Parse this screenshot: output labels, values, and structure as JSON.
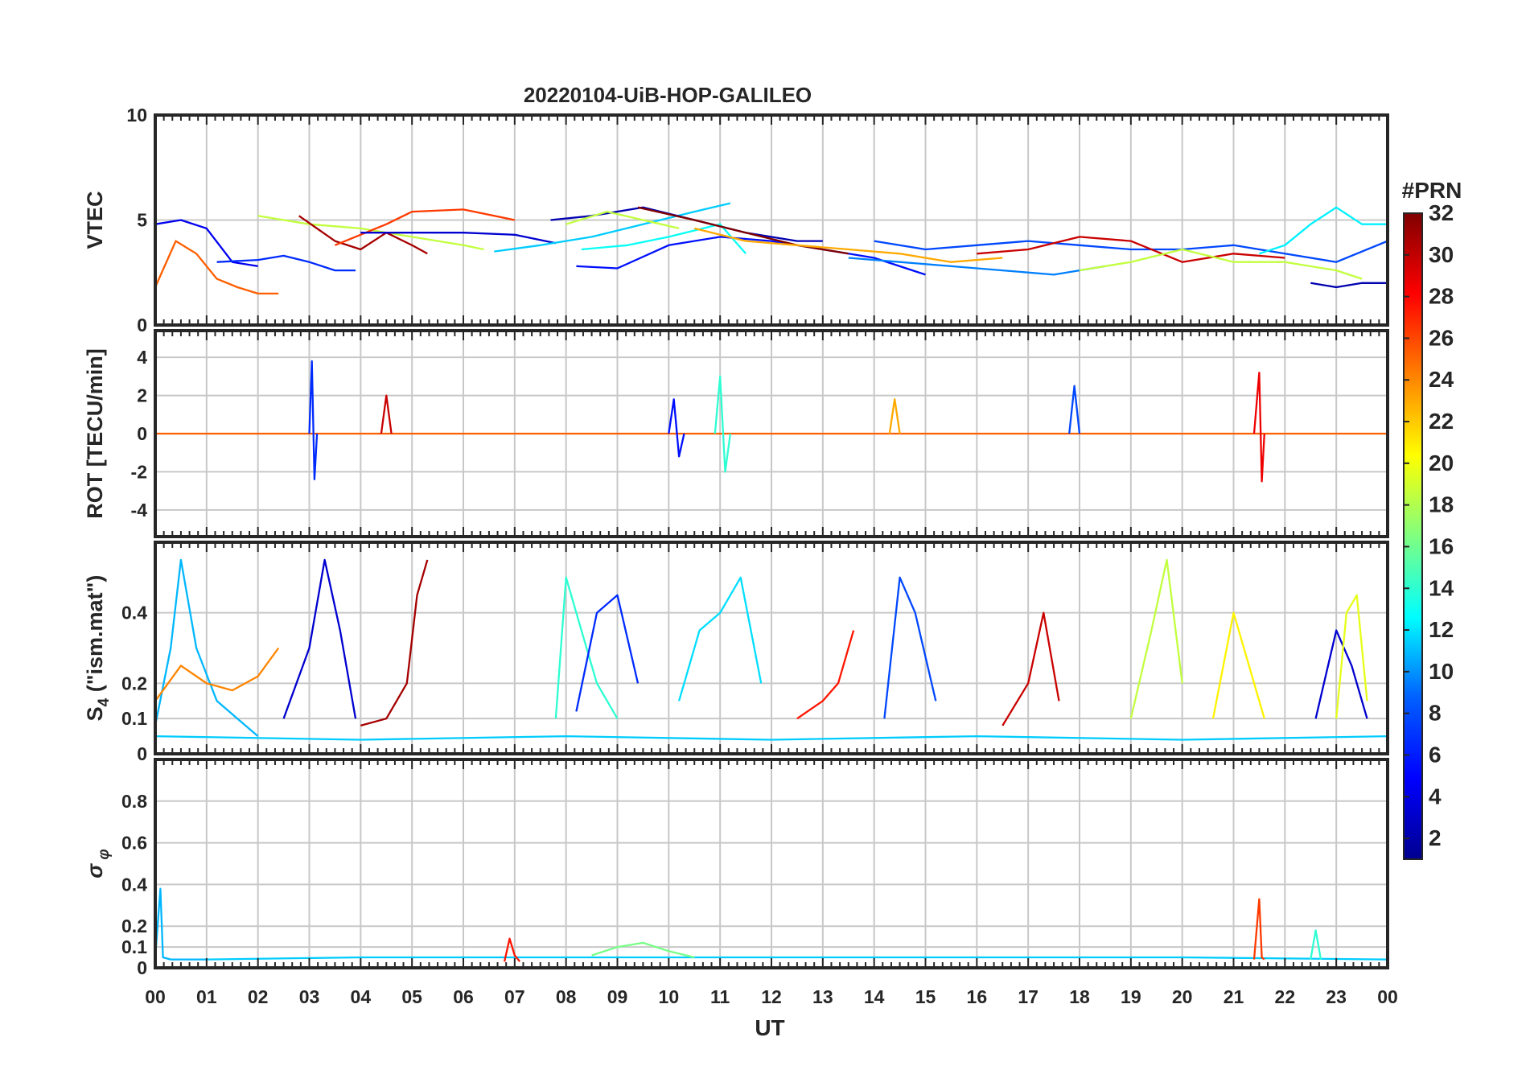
{
  "title": "20220104-UiB-HOP-GALILEO",
  "x_axis": {
    "label": "UT",
    "tick_labels": [
      "00",
      "01",
      "02",
      "03",
      "04",
      "05",
      "06",
      "07",
      "08",
      "09",
      "10",
      "11",
      "12",
      "13",
      "14",
      "15",
      "16",
      "17",
      "18",
      "19",
      "20",
      "21",
      "22",
      "23",
      "00"
    ]
  },
  "colorbar": {
    "label": "#PRN",
    "range": [
      1,
      32
    ],
    "tick_labels": [
      "2",
      "4",
      "6",
      "8",
      "10",
      "12",
      "14",
      "16",
      "18",
      "20",
      "22",
      "24",
      "26",
      "28",
      "30",
      "32"
    ],
    "colormap": "jet",
    "colors": [
      "#00008f",
      "#0000ff",
      "#0080ff",
      "#00ffff",
      "#80ff80",
      "#ffff00",
      "#ff8000",
      "#ff0000",
      "#800000"
    ]
  },
  "chart_data": [
    {
      "panel": "VTEC",
      "type": "line",
      "ylabel": "VTEC",
      "ylim": [
        0,
        10
      ],
      "yticks": [
        0,
        5,
        10
      ],
      "ytick_labels": [
        "0",
        "5",
        "10"
      ],
      "xlim_hours": [
        0,
        24
      ],
      "grid": true,
      "series": [
        {
          "prn": 4,
          "x": [
            0,
            0.5,
            1,
            1.5,
            2
          ],
          "y": [
            4.8,
            5.0,
            4.6,
            3.0,
            2.8
          ]
        },
        {
          "prn": 26,
          "x": [
            0,
            0.4,
            0.8,
            1.2,
            1.6,
            2.0,
            2.4
          ],
          "y": [
            1.8,
            4.0,
            3.4,
            2.2,
            1.8,
            1.5,
            1.5
          ]
        },
        {
          "prn": 6,
          "x": [
            1.2,
            2,
            2.5,
            3,
            3.5,
            3.9
          ],
          "y": [
            3.0,
            3.1,
            3.3,
            3.0,
            2.6,
            2.6
          ]
        },
        {
          "prn": 20,
          "x": [
            2,
            3,
            4,
            5,
            6,
            6.4
          ],
          "y": [
            5.2,
            4.8,
            4.6,
            4.2,
            3.8,
            3.6
          ]
        },
        {
          "prn": 31,
          "x": [
            2.8,
            3.5,
            4,
            4.5,
            5,
            5.3
          ],
          "y": [
            5.2,
            4.0,
            3.6,
            4.4,
            3.8,
            3.4
          ]
        },
        {
          "prn": 27,
          "x": [
            3.5,
            4.5,
            5,
            6,
            7
          ],
          "y": [
            3.8,
            4.8,
            5.4,
            5.5,
            5.0
          ]
        },
        {
          "prn": 3,
          "x": [
            4,
            5,
            6,
            7,
            7.8
          ],
          "y": [
            4.4,
            4.4,
            4.4,
            4.3,
            3.9
          ]
        },
        {
          "prn": 12,
          "x": [
            6.6,
            7.5,
            8.5,
            9.5,
            10.5,
            11.2
          ],
          "y": [
            3.5,
            3.8,
            4.2,
            4.8,
            5.4,
            5.8
          ]
        },
        {
          "prn": 2,
          "x": [
            7.7,
            8.5,
            9.5,
            10.5,
            11.5,
            12.5,
            13
          ],
          "y": [
            5.0,
            5.2,
            5.6,
            5.0,
            4.4,
            4.0,
            4.0
          ]
        },
        {
          "prn": 5,
          "x": [
            8.2,
            9,
            10,
            11,
            12,
            13,
            14,
            15
          ],
          "y": [
            2.8,
            2.7,
            3.8,
            4.2,
            4.0,
            3.6,
            3.2,
            2.4
          ]
        },
        {
          "prn": 15,
          "x": [
            8.3,
            9.2,
            10,
            11,
            11.5
          ],
          "y": [
            3.6,
            3.8,
            4.2,
            4.8,
            3.4
          ]
        },
        {
          "prn": 20,
          "x": [
            8,
            8.8,
            9.5,
            10.2
          ],
          "y": [
            4.8,
            5.4,
            5.0,
            4.6
          ]
        },
        {
          "prn": 32,
          "x": [
            9.4,
            10.5,
            11.5,
            12.5,
            13.5
          ],
          "y": [
            5.6,
            5.0,
            4.4,
            3.8,
            3.4
          ]
        },
        {
          "prn": 24,
          "x": [
            10.5,
            11.5,
            12.5,
            13.5,
            14.5,
            15.5,
            16.5
          ],
          "y": [
            4.6,
            4.0,
            3.8,
            3.6,
            3.4,
            3.0,
            3.2
          ]
        },
        {
          "prn": 7,
          "x": [
            14,
            15,
            16,
            17,
            18,
            19,
            20,
            21,
            22,
            23,
            24
          ],
          "y": [
            4.0,
            3.6,
            3.8,
            4.0,
            3.8,
            3.6,
            3.6,
            3.8,
            3.4,
            3.0,
            4.0
          ]
        },
        {
          "prn": 9,
          "x": [
            13.5,
            14.5,
            15.5,
            16.5,
            17.5,
            18.5
          ],
          "y": [
            3.2,
            3.0,
            2.8,
            2.6,
            2.4,
            2.8
          ]
        },
        {
          "prn": 30,
          "x": [
            16,
            17,
            18,
            19,
            20,
            21,
            22
          ],
          "y": [
            3.4,
            3.6,
            4.2,
            4.0,
            3.0,
            3.4,
            3.2
          ]
        },
        {
          "prn": 20,
          "x": [
            18,
            19,
            20,
            21,
            22,
            23,
            23.5
          ],
          "y": [
            2.6,
            3.0,
            3.6,
            3.0,
            3.0,
            2.6,
            2.2
          ]
        },
        {
          "prn": 14,
          "x": [
            21.5,
            22,
            22.5,
            23,
            23.5,
            24
          ],
          "y": [
            3.4,
            3.8,
            4.8,
            5.6,
            4.8,
            4.8
          ]
        },
        {
          "prn": 2,
          "x": [
            22.5,
            23,
            23.5,
            24
          ],
          "y": [
            2.0,
            1.8,
            2.0,
            2.0
          ]
        }
      ]
    },
    {
      "panel": "ROT",
      "type": "line",
      "ylabel": "ROT [TECU/min]",
      "ylim": [
        -5.4,
        5.4
      ],
      "yticks": [
        -4,
        -2,
        0,
        2,
        4
      ],
      "ytick_labels": [
        "-4",
        "-2",
        "0",
        "2",
        "4"
      ],
      "xlim_hours": [
        0,
        24
      ],
      "grid": true,
      "series": [
        {
          "prn": 26,
          "x": [
            0,
            2,
            4,
            6,
            8,
            10,
            12,
            14,
            16,
            18,
            20,
            22,
            24
          ],
          "y": [
            0,
            0,
            0,
            0,
            0,
            0,
            0,
            0,
            0,
            0,
            0,
            0,
            0
          ]
        },
        {
          "prn": 6,
          "x": [
            3.0,
            3.05,
            3.1,
            3.15
          ],
          "y": [
            0,
            3.8,
            -2.4,
            0
          ]
        },
        {
          "prn": 5,
          "x": [
            10,
            10.1,
            10.2,
            10.3
          ],
          "y": [
            0,
            1.8,
            -1.2,
            0
          ]
        },
        {
          "prn": 16,
          "x": [
            10.9,
            11.0,
            11.1,
            11.2
          ],
          "y": [
            0,
            3.0,
            -2.0,
            0
          ]
        },
        {
          "prn": 29,
          "x": [
            21.4,
            21.5,
            21.55,
            21.6
          ],
          "y": [
            0,
            3.2,
            -2.5,
            0
          ]
        },
        {
          "prn": 30,
          "x": [
            4.4,
            4.5,
            4.6
          ],
          "y": [
            0,
            2.0,
            0
          ]
        },
        {
          "prn": 24,
          "x": [
            14.3,
            14.4,
            14.5
          ],
          "y": [
            0,
            1.8,
            0
          ]
        },
        {
          "prn": 7,
          "x": [
            17.8,
            17.9,
            18.0
          ],
          "y": [
            0,
            2.5,
            0
          ]
        }
      ]
    },
    {
      "panel": "S4",
      "type": "line",
      "ylabel": "S4 (\"ism.mat\")",
      "ylim": [
        0,
        0.6
      ],
      "yticks": [
        0,
        0.1,
        0.2,
        0.4
      ],
      "ytick_labels": [
        "0",
        "0.1",
        "0.2",
        "0.4"
      ],
      "xlim_hours": [
        0,
        24
      ],
      "grid": true,
      "series": [
        {
          "prn": 11,
          "x": [
            0,
            0.3,
            0.5,
            0.8,
            1.2,
            1.6,
            2.0
          ],
          "y": [
            0.08,
            0.3,
            0.55,
            0.3,
            0.15,
            0.1,
            0.05
          ]
        },
        {
          "prn": 25,
          "x": [
            0,
            0.5,
            1,
            1.5,
            2,
            2.4
          ],
          "y": [
            0.15,
            0.25,
            0.2,
            0.18,
            0.22,
            0.3
          ]
        },
        {
          "prn": 3,
          "x": [
            2.5,
            3,
            3.3,
            3.6,
            3.9
          ],
          "y": [
            0.1,
            0.3,
            0.55,
            0.35,
            0.1
          ]
        },
        {
          "prn": 31,
          "x": [
            4,
            4.5,
            4.9,
            5.1,
            5.3
          ],
          "y": [
            0.08,
            0.1,
            0.2,
            0.45,
            0.55
          ]
        },
        {
          "prn": 16,
          "x": [
            7.8,
            8.0,
            8.3,
            8.6,
            9.0
          ],
          "y": [
            0.1,
            0.5,
            0.35,
            0.2,
            0.1
          ]
        },
        {
          "prn": 6,
          "x": [
            8.2,
            8.6,
            9.0,
            9.4
          ],
          "y": [
            0.12,
            0.4,
            0.45,
            0.2
          ]
        },
        {
          "prn": 13,
          "x": [
            10.2,
            10.6,
            11,
            11.4,
            11.8
          ],
          "y": [
            0.15,
            0.35,
            0.4,
            0.5,
            0.2
          ]
        },
        {
          "prn": 28,
          "x": [
            12.5,
            13,
            13.3,
            13.6
          ],
          "y": [
            0.1,
            0.15,
            0.2,
            0.35
          ]
        },
        {
          "prn": 7,
          "x": [
            14.2,
            14.5,
            14.8,
            15.2
          ],
          "y": [
            0.1,
            0.5,
            0.4,
            0.15
          ]
        },
        {
          "prn": 30,
          "x": [
            16.5,
            17,
            17.3,
            17.6
          ],
          "y": [
            0.08,
            0.2,
            0.4,
            0.15
          ]
        },
        {
          "prn": 20,
          "x": [
            19,
            19.4,
            19.7,
            20
          ],
          "y": [
            0.1,
            0.35,
            0.55,
            0.2
          ]
        },
        {
          "prn": 22,
          "x": [
            20.6,
            21,
            21.3,
            21.6
          ],
          "y": [
            0.1,
            0.4,
            0.25,
            0.1
          ]
        },
        {
          "prn": 3,
          "x": [
            22.6,
            23,
            23.3,
            23.6
          ],
          "y": [
            0.1,
            0.35,
            0.25,
            0.1
          ]
        },
        {
          "prn": 21,
          "x": [
            23,
            23.2,
            23.4,
            23.6
          ],
          "y": [
            0.1,
            0.4,
            0.45,
            0.15
          ]
        },
        {
          "prn": 12,
          "x": [
            0,
            4,
            8,
            12,
            16,
            20,
            24
          ],
          "y": [
            0.05,
            0.04,
            0.05,
            0.04,
            0.05,
            0.04,
            0.05
          ]
        }
      ]
    },
    {
      "panel": "sigma_phi",
      "type": "line",
      "ylabel": "σφ",
      "ylim": [
        0,
        1.0
      ],
      "yticks": [
        0,
        0.1,
        0.2,
        0.4,
        0.6,
        0.8
      ],
      "ytick_labels": [
        "0",
        "0.1",
        "0.2",
        "0.4",
        "0.6",
        "0.8"
      ],
      "xlim_hours": [
        0,
        24
      ],
      "grid": true,
      "series": [
        {
          "prn": 11,
          "x": [
            0,
            0.1,
            0.15,
            0.3,
            1
          ],
          "y": [
            0.05,
            0.38,
            0.05,
            0.04,
            0.04
          ]
        },
        {
          "prn": 12,
          "x": [
            1,
            4,
            8,
            12,
            16,
            20,
            24
          ],
          "y": [
            0.04,
            0.05,
            0.05,
            0.05,
            0.05,
            0.05,
            0.04
          ]
        },
        {
          "prn": 28,
          "x": [
            6.8,
            6.9,
            7.0,
            7.1
          ],
          "y": [
            0.03,
            0.14,
            0.06,
            0.03
          ]
        },
        {
          "prn": 18,
          "x": [
            8.5,
            9,
            9.5,
            10,
            10.5
          ],
          "y": [
            0.06,
            0.1,
            0.12,
            0.08,
            0.05
          ]
        },
        {
          "prn": 27,
          "x": [
            21.4,
            21.5,
            21.55,
            21.6
          ],
          "y": [
            0.04,
            0.33,
            0.05,
            0.04
          ]
        },
        {
          "prn": 16,
          "x": [
            22.5,
            22.6,
            22.7
          ],
          "y": [
            0.04,
            0.18,
            0.04
          ]
        }
      ]
    }
  ]
}
